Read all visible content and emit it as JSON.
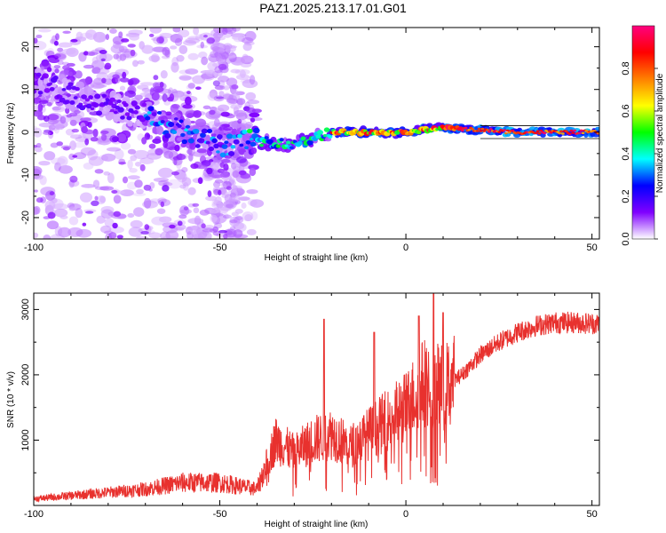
{
  "title": "PAZ1.2025.213.17.01.G01",
  "colors": {
    "snr_line": "#e8312e",
    "frame": "#000000"
  },
  "chart_data": [
    {
      "type": "heatmap",
      "xlabel": "Height of straight line (km)",
      "ylabel": "Frequency (Hz)",
      "xlim": [
        -100,
        52
      ],
      "ylim": [
        -25,
        24.5
      ],
      "xticks": [
        -100,
        -50,
        0,
        50
      ],
      "yticks": [
        -20,
        -10,
        0,
        10,
        20
      ],
      "colorbar": {
        "label": "Normalized spectral amplitude",
        "range": [
          0,
          1
        ],
        "ticks": [
          "0.0",
          "0.2",
          "0.4",
          "0.6",
          "0.8"
        ],
        "colormap": [
          "#ffffff",
          "#8000ff",
          "#0000ff",
          "#00ffff",
          "#00ff00",
          "#ffff00",
          "#ff8000",
          "#ff0000",
          "#ff0080"
        ]
      },
      "ridge": [
        {
          "x": -100,
          "y": 12
        },
        {
          "x": -90,
          "y": 9
        },
        {
          "x": -80,
          "y": 6
        },
        {
          "x": -70,
          "y": 4
        },
        {
          "x": -60,
          "y": 0
        },
        {
          "x": -50,
          "y": -3
        },
        {
          "x": -40,
          "y": -2
        },
        {
          "x": -30,
          "y": -3
        },
        {
          "x": -20,
          "y": 0
        },
        {
          "x": -10,
          "y": 0
        },
        {
          "x": 0,
          "y": 0
        },
        {
          "x": 10,
          "y": 1
        },
        {
          "x": 20,
          "y": 0.5
        },
        {
          "x": 30,
          "y": 0
        },
        {
          "x": 52,
          "y": 0
        }
      ]
    },
    {
      "type": "line",
      "xlabel": "Height of straight line (km)",
      "ylabel": "SNR (10 * v/v)",
      "xlim": [
        -100,
        52
      ],
      "ylim": [
        0,
        3250
      ],
      "xticks": [
        -100,
        -50,
        0,
        50
      ],
      "yticks": [
        1000,
        2000,
        3000
      ],
      "series_envelope": [
        {
          "x": -100,
          "y": 100
        },
        {
          "x": -90,
          "y": 150
        },
        {
          "x": -80,
          "y": 200
        },
        {
          "x": -70,
          "y": 250
        },
        {
          "x": -60,
          "y": 350
        },
        {
          "x": -50,
          "y": 350
        },
        {
          "x": -40,
          "y": 250
        },
        {
          "x": -35,
          "y": 1000
        },
        {
          "x": -30,
          "y": 800
        },
        {
          "x": -25,
          "y": 1000
        },
        {
          "x": -20,
          "y": 1100
        },
        {
          "x": -15,
          "y": 900
        },
        {
          "x": -10,
          "y": 1100
        },
        {
          "x": -5,
          "y": 1300
        },
        {
          "x": 0,
          "y": 1500
        },
        {
          "x": 5,
          "y": 1900
        },
        {
          "x": 10,
          "y": 1800
        },
        {
          "x": 15,
          "y": 2000
        },
        {
          "x": 20,
          "y": 2300
        },
        {
          "x": 25,
          "y": 2500
        },
        {
          "x": 30,
          "y": 2650
        },
        {
          "x": 35,
          "y": 2750
        },
        {
          "x": 40,
          "y": 2800
        },
        {
          "x": 45,
          "y": 2800
        },
        {
          "x": 52,
          "y": 2780
        }
      ],
      "spikes": [
        {
          "x": -22,
          "y": 2850
        },
        {
          "x": -8.5,
          "y": 2650
        },
        {
          "x": 3.5,
          "y": 2900
        },
        {
          "x": 7.5,
          "y": 3250
        },
        {
          "x": 10,
          "y": 2950
        }
      ]
    }
  ]
}
